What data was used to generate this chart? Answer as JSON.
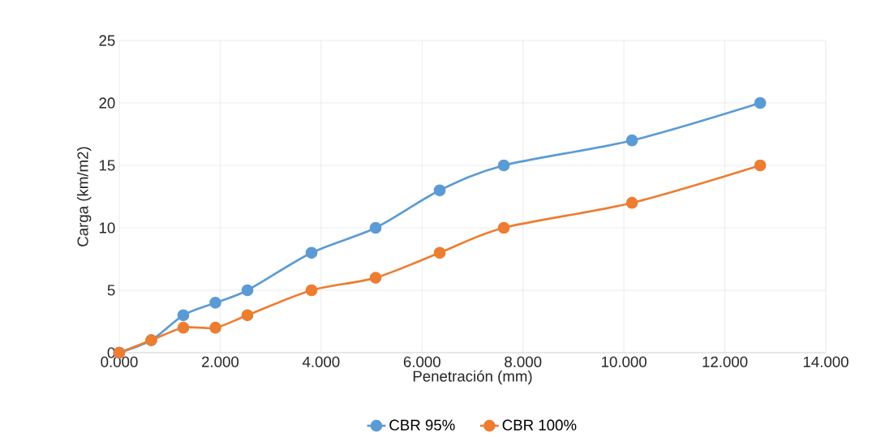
{
  "chart_data": {
    "type": "line",
    "xlabel": "Penetración (mm)",
    "ylabel": "Carga (km/m2)",
    "x": [
      0,
      0.635,
      1.27,
      1.905,
      2.54,
      3.81,
      5.08,
      6.35,
      7.62,
      10.16,
      12.7
    ],
    "series": [
      {
        "name": "CBR 95%",
        "color": "#5b9bd5",
        "values": [
          0,
          1,
          3,
          4,
          5,
          8,
          10,
          13,
          15,
          17,
          20
        ]
      },
      {
        "name": "CBR 100%",
        "color": "#ed7d31",
        "values": [
          0,
          1,
          2,
          2,
          3,
          5,
          6,
          8,
          10,
          12,
          15
        ]
      }
    ],
    "xlim": [
      0,
      14
    ],
    "ylim": [
      0,
      25
    ],
    "xticks": [
      {
        "value": 0,
        "label": "0.000"
      },
      {
        "value": 2,
        "label": "2.000"
      },
      {
        "value": 4,
        "label": "4.000"
      },
      {
        "value": 6,
        "label": "6.000"
      },
      {
        "value": 8,
        "label": "8.000"
      },
      {
        "value": 10,
        "label": "10.000"
      },
      {
        "value": 12,
        "label": "12.000"
      },
      {
        "value": 14,
        "label": "14.000"
      }
    ],
    "yticks": [
      0,
      5,
      10,
      15,
      20,
      25
    ],
    "grid": true,
    "legend": "bottom",
    "marker": "circle",
    "line_style": "solid"
  }
}
